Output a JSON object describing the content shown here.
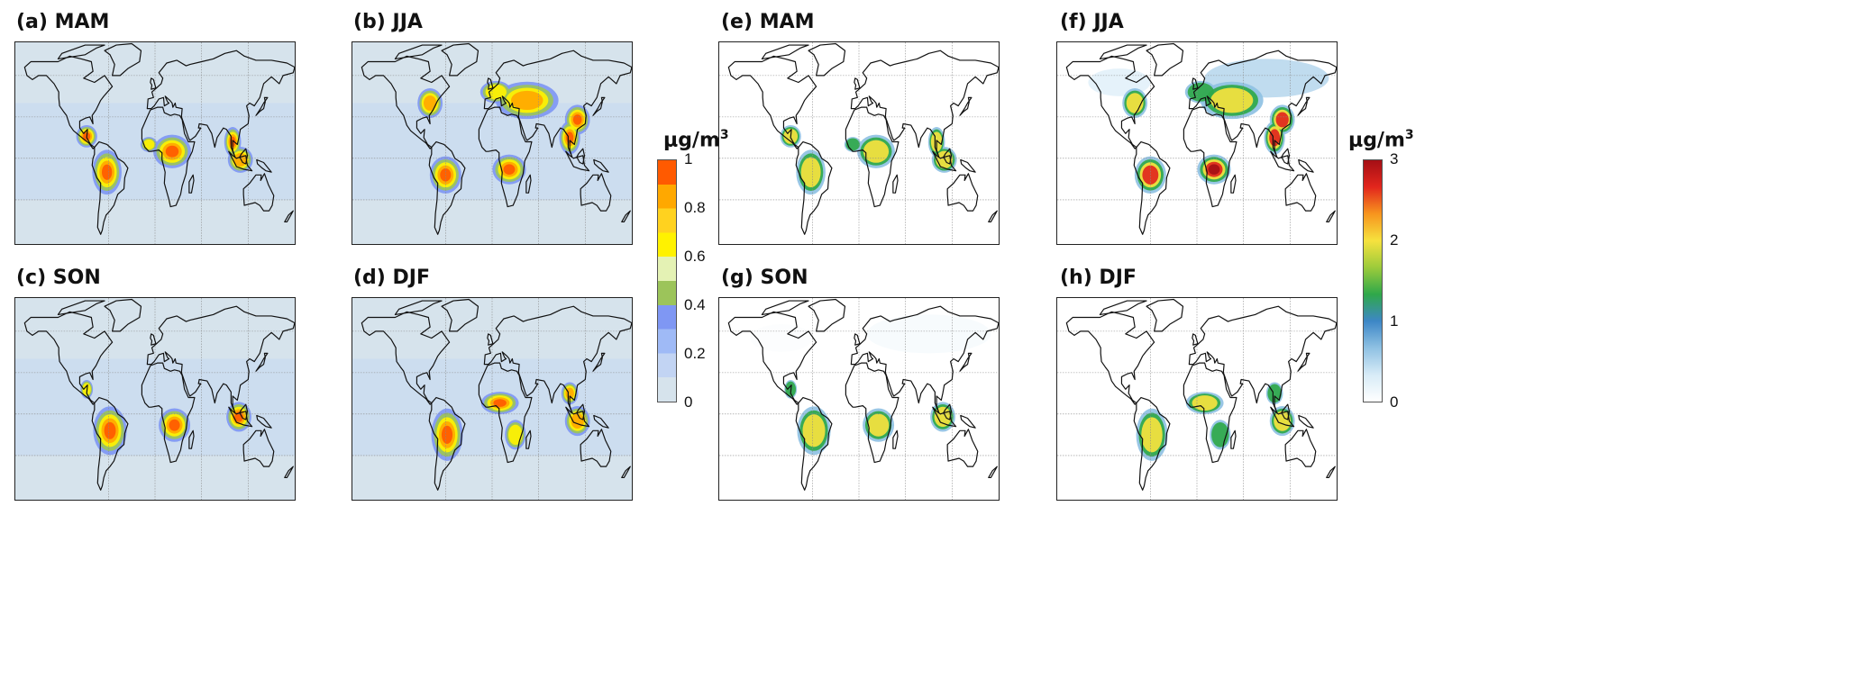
{
  "panels": [
    {
      "id": "a",
      "title": "(a) MAM",
      "colormap": "left",
      "season": "MAM",
      "intensity": 0.55,
      "boreal": 0.0
    },
    {
      "id": "b",
      "title": "(b) JJA",
      "colormap": "left",
      "season": "JJA",
      "intensity": 0.8,
      "boreal": 0.9
    },
    {
      "id": "c",
      "title": "(c) SON",
      "colormap": "left",
      "season": "SON",
      "intensity": 0.6,
      "boreal": 0.1
    },
    {
      "id": "d",
      "title": "(d) DJF",
      "colormap": "left",
      "season": "DJF",
      "intensity": 0.6,
      "boreal": 0.0
    },
    {
      "id": "e",
      "title": "(e) MAM",
      "colormap": "right",
      "season": "MAM",
      "intensity": 0.55,
      "boreal": 0.0
    },
    {
      "id": "f",
      "title": "(f) JJA",
      "colormap": "right",
      "season": "JJA",
      "intensity": 0.8,
      "boreal": 0.8
    },
    {
      "id": "g",
      "title": "(g) SON",
      "colormap": "right",
      "season": "SON",
      "intensity": 0.6,
      "boreal": 0.1
    },
    {
      "id": "h",
      "title": "(h) DJF",
      "colormap": "right",
      "season": "DJF",
      "intensity": 0.6,
      "boreal": 0.0
    }
  ],
  "colorbars": {
    "left": {
      "unit": "μg/m",
      "unit_exponent": "3",
      "ticks": [
        "1",
        "0.8",
        "0.6",
        "0.4",
        "0.2",
        "0"
      ],
      "colors": [
        "#d6e3ec",
        "#c2d4f3",
        "#9fbaf6",
        "#7f97f3",
        "#9cc45a",
        "#e4f2b4",
        "#fff200",
        "#ffd21f",
        "#ffa800",
        "#ff5a00"
      ],
      "background": "#d6e3ec"
    },
    "right": {
      "unit": "μg/m",
      "unit_exponent": "3",
      "ticks": [
        "3",
        "2",
        "1",
        "0"
      ],
      "colors": [
        "#ffffff",
        "#d7ebf7",
        "#8fc1e3",
        "#3d87c6",
        "#2fa84a",
        "#9ccb3b",
        "#f6e23e",
        "#f7951e",
        "#e2261d",
        "#a50f15"
      ],
      "background": "#ffffff"
    }
  }
}
